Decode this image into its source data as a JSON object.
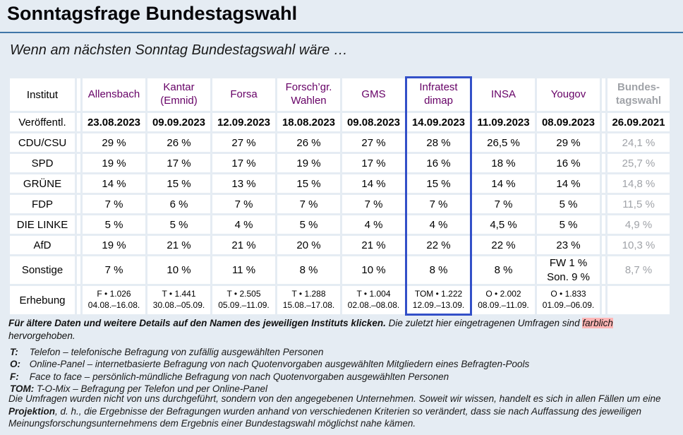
{
  "page": {
    "title": "Sonntagsfrage Bundestagswahl",
    "subtitle": "Wenn am nächsten Sonntag Bundestagswahl wäre …"
  },
  "colors": {
    "background": "#e5ecf3",
    "title_rule": "#4177a8",
    "institute_link": "#660066",
    "highlight_pink": "#ffb6b6",
    "frame_blue": "#3350c8",
    "muted_gray": "#a0a3a8",
    "cell_background": "#ffffff"
  },
  "table": {
    "corner_label": "Institut",
    "framed_column": "Infratest dimap",
    "institutes": [
      {
        "id": "allensbach",
        "label": "Allensbach"
      },
      {
        "id": "kantar",
        "label": "Kantar (Emnid)"
      },
      {
        "id": "forsa",
        "label": "Forsa"
      },
      {
        "id": "fgw",
        "label": "Forsch’gr. Wahlen"
      },
      {
        "id": "gms",
        "label": "GMS"
      },
      {
        "id": "infratest",
        "label": "Infratest dimap"
      },
      {
        "id": "insa",
        "label": "INSA"
      },
      {
        "id": "yougov",
        "label": "Yougov"
      }
    ],
    "btw_column": {
      "id": "bundestagswahl",
      "label": "Bundes- tagswahl"
    },
    "rows": [
      {
        "id": "veroeffentl",
        "kind": "dates",
        "label": "Veröffentl.",
        "cells": [
          "23.08.2023",
          "09.09.2023",
          "12.09.2023",
          "18.08.2023",
          "09.08.2023",
          "14.09.2023",
          "11.09.2023",
          "08.09.2023"
        ],
        "btw_cell": "26.09.2021",
        "highlights": [
          2,
          5,
          6
        ]
      },
      {
        "id": "cdu-csu",
        "kind": "values",
        "label": "CDU/CSU",
        "cells": [
          "29 %",
          "26 %",
          "27 %",
          "26 %",
          "27 %",
          "28 %",
          "26,5 %",
          "29 %"
        ],
        "btw_cell": "24,1 %"
      },
      {
        "id": "spd",
        "kind": "values",
        "label": "SPD",
        "cells": [
          "19 %",
          "17 %",
          "17 %",
          "19 %",
          "17 %",
          "16 %",
          "18 %",
          "16 %"
        ],
        "btw_cell": "25,7 %"
      },
      {
        "id": "gruene",
        "kind": "values",
        "label": "GRÜNE",
        "cells": [
          "14 %",
          "15 %",
          "13 %",
          "15 %",
          "14 %",
          "15 %",
          "14 %",
          "14 %"
        ],
        "btw_cell": "14,8 %"
      },
      {
        "id": "fdp",
        "kind": "values",
        "label": "FDP",
        "cells": [
          "7 %",
          "6 %",
          "7 %",
          "7 %",
          "7 %",
          "7 %",
          "7 %",
          "5 %"
        ],
        "btw_cell": "11,5 %"
      },
      {
        "id": "die-linke",
        "kind": "values",
        "label": "DIE LINKE",
        "cells": [
          "5 %",
          "5 %",
          "4 %",
          "5 %",
          "4 %",
          "4 %",
          "4,5 %",
          "5 %"
        ],
        "btw_cell": "4,9 %"
      },
      {
        "id": "afd",
        "kind": "values",
        "label": "AfD",
        "cells": [
          "19 %",
          "21 %",
          "21 %",
          "20 %",
          "21 %",
          "22 %",
          "22 %",
          "23 %"
        ],
        "btw_cell": "10,3 %"
      },
      {
        "id": "sonstige",
        "kind": "values",
        "tall": true,
        "label": "Sonstige",
        "cells": [
          "7 %",
          "10 %",
          "11 %",
          "8 %",
          "10 %",
          "8 %",
          "8 %",
          {
            "line1": "FW 1 %",
            "line2": "Son. 9 %"
          }
        ],
        "btw_cell": "8,7 %"
      },
      {
        "id": "erhebung",
        "kind": "erhebung",
        "label": "Erhebung",
        "cells": [
          {
            "line1": "F • 1.026",
            "line2": "04.08.–16.08."
          },
          {
            "line1": "T • 1.441",
            "line2": "30.08.–05.09."
          },
          {
            "line1": "T • 2.505",
            "line2": "05.09.–11.09."
          },
          {
            "line1": "T • 1.288",
            "line2": "15.08.–17.08."
          },
          {
            "line1": "T • 1.004",
            "line2": "02.08.–08.08."
          },
          {
            "line1": "TOM • 1.222",
            "line2": "12.09.–13.09."
          },
          {
            "line1": "O • 2.002",
            "line2": "08.09.–11.09."
          },
          {
            "line1": "O • 1.833",
            "line2": "01.09.–06.09."
          }
        ],
        "btw_cell": ""
      }
    ]
  },
  "footnote": {
    "bold_part": "Für ältere Daten und weitere Details auf den Namen des jeweiligen Instituts klicken.",
    "normal_part": "Die zuletzt hier eingetragenen Umfragen sind",
    "highlight_word": "farblich",
    "tail": "hervorgehoben."
  },
  "legend": [
    {
      "term": "T:",
      "text": "Telefon – telefonische Befragung von zufällig ausgewählten Personen"
    },
    {
      "term": "O:",
      "text": "Online-Panel – internetbasierte Befragung von nach Quotenvorgaben ausgewählten Mitgliedern eines Befragten-Pools"
    },
    {
      "term": "F:",
      "text": "Face to face – persönlich-mündliche Befragung von nach Quotenvorgaben ausgewählten Personen"
    },
    {
      "term": "TOM:",
      "text": "T-O-Mix – Befragung per Telefon und per Online-Panel"
    }
  ],
  "disclaimer": {
    "part1": "Die Umfragen wurden nicht von uns durchgeführt, sondern von den angegebenen Unternehmen. Soweit wir wissen, handelt es sich in allen Fällen um eine",
    "bold_word": "Projektion",
    "part2": ", d. h., die Ergebnisse der Befragungen wurden anhand von verschiedenen Kriterien so verändert, dass sie nach Auffassung des jeweiligen Meinungsforschungsunternehmens dem Ergebnis einer Bundestagswahl möglichst nahe kämen."
  }
}
